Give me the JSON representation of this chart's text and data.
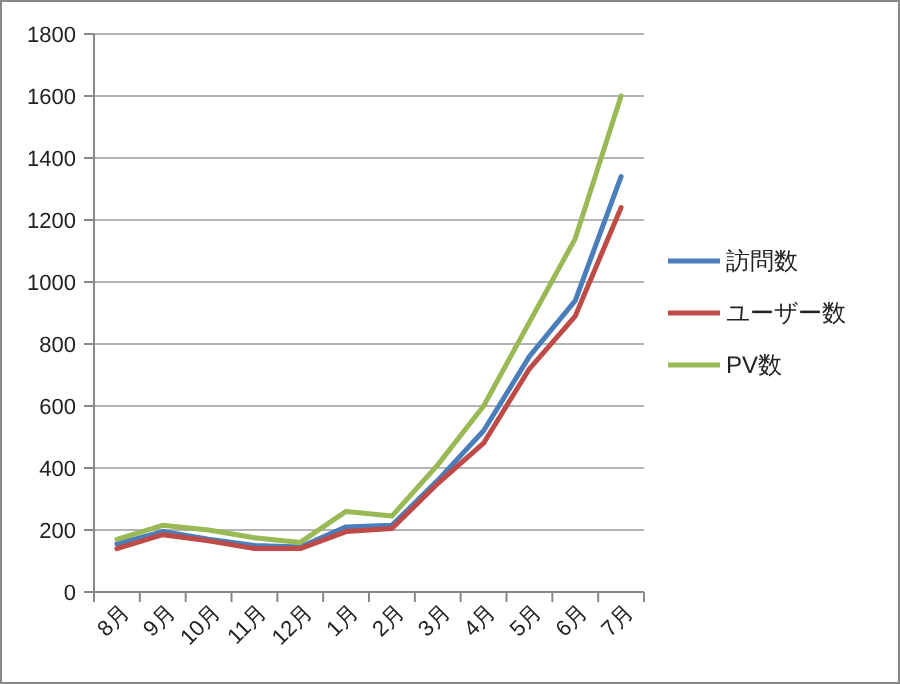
{
  "chart_data": {
    "type": "line",
    "categories": [
      "8月",
      "9月",
      "10月",
      "11月",
      "12月",
      "1月",
      "2月",
      "3月",
      "4月",
      "5月",
      "6月",
      "7月"
    ],
    "series": [
      {
        "name": "訪問数",
        "color": "#4a7ebb",
        "values": [
          155,
          195,
          170,
          150,
          145,
          210,
          215,
          360,
          520,
          760,
          940,
          1340
        ]
      },
      {
        "name": "ユーザー数",
        "color": "#be4b48",
        "values": [
          140,
          185,
          165,
          140,
          140,
          195,
          205,
          350,
          480,
          720,
          890,
          1240
        ]
      },
      {
        "name": "PV数",
        "color": "#98b954",
        "values": [
          170,
          215,
          200,
          175,
          160,
          260,
          245,
          410,
          600,
          870,
          1140,
          1600
        ]
      }
    ],
    "ylim": [
      0,
      1800
    ],
    "yticks": [
      0,
      200,
      400,
      600,
      800,
      1000,
      1200,
      1400,
      1600,
      1800
    ],
    "grid": "y",
    "legend": "right",
    "marker": "none",
    "line_style": "solid"
  }
}
